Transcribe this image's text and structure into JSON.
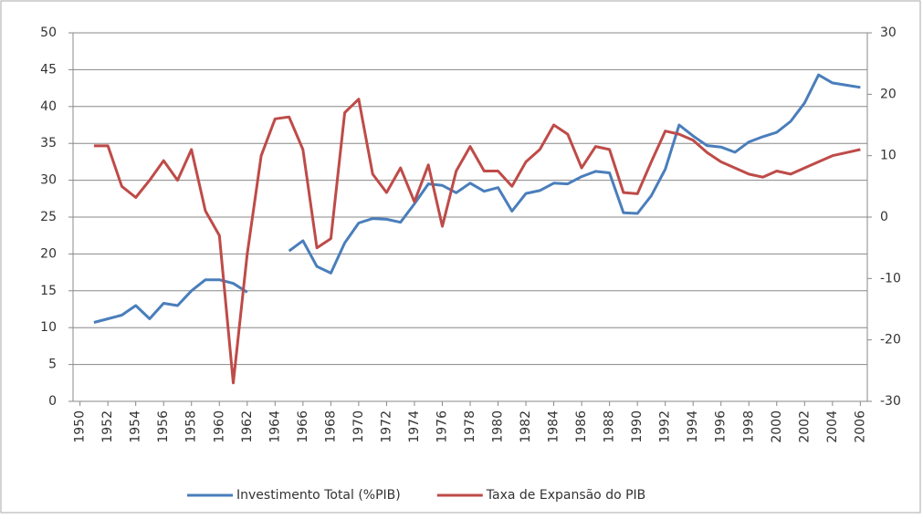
{
  "chart_data": {
    "type": "line",
    "x": [
      1951,
      1952,
      1953,
      1954,
      1955,
      1956,
      1957,
      1958,
      1959,
      1960,
      1961,
      1962,
      1963,
      1964,
      1965,
      1966,
      1967,
      1968,
      1969,
      1970,
      1971,
      1972,
      1973,
      1974,
      1975,
      1976,
      1977,
      1978,
      1979,
      1980,
      1981,
      1982,
      1983,
      1984,
      1985,
      1986,
      1987,
      1988,
      1989,
      1990,
      1991,
      1992,
      1993,
      1994,
      1995,
      1996,
      1997,
      1998,
      1999,
      2000,
      2001,
      2002,
      2003,
      2004,
      2005,
      2006
    ],
    "series": [
      {
        "name": "Investimento Total (%PIB)",
        "color": "#4a7ebb",
        "axis": "y",
        "values": [
          10.7,
          11.2,
          11.7,
          13.0,
          11.2,
          13.3,
          13.0,
          15.0,
          16.5,
          16.5,
          16.0,
          14.8,
          null,
          null,
          20.4,
          21.8,
          18.3,
          17.4,
          21.5,
          24.2,
          24.8,
          24.7,
          24.3,
          26.8,
          29.5,
          29.3,
          28.3,
          29.6,
          28.5,
          29.0,
          25.8,
          28.2,
          28.6,
          29.6,
          29.5,
          30.5,
          31.2,
          31.0,
          25.6,
          25.5,
          27.9,
          31.5,
          37.5,
          36.0,
          34.7,
          34.5,
          33.8,
          35.2,
          35.9,
          36.5,
          38.0,
          40.5,
          44.3,
          43.2,
          42.9,
          42.6
        ]
      },
      {
        "name": "Taxa de Expansão do PIB",
        "color": "#be4b48",
        "axis": "y2",
        "values": [
          11.6,
          11.6,
          5.0,
          3.2,
          6.0,
          9.2,
          6.0,
          11.0,
          1.0,
          -3.0,
          -27.0,
          -6.0,
          10.0,
          16.0,
          16.3,
          11.0,
          -5.0,
          -3.5,
          17.0,
          19.2,
          7.0,
          4.0,
          8.0,
          2.5,
          8.5,
          -1.5,
          7.5,
          11.5,
          7.5,
          7.5,
          5.0,
          9.0,
          11.0,
          15.0,
          13.5,
          8.0,
          11.5,
          11.0,
          4.0,
          3.8,
          9.0,
          14.0,
          13.5,
          12.5,
          10.5,
          9.0,
          8.0,
          7.0,
          6.5,
          7.5,
          7.0,
          8.0,
          9.0,
          10.0,
          10.5,
          11.0
        ]
      }
    ],
    "xlim": [
      1949.5,
      2006.5
    ],
    "xticks": [
      1950,
      1952,
      1954,
      1956,
      1958,
      1960,
      1962,
      1964,
      1966,
      1968,
      1970,
      1972,
      1974,
      1976,
      1978,
      1980,
      1982,
      1984,
      1986,
      1988,
      1990,
      1992,
      1994,
      1996,
      1998,
      2000,
      2002,
      2004,
      2006
    ],
    "ylim": [
      0,
      50
    ],
    "yticks": [
      0,
      5,
      10,
      15,
      20,
      25,
      30,
      35,
      40,
      45,
      50
    ],
    "y2lim": [
      -30,
      30
    ],
    "y2ticks": [
      -30,
      -20,
      -10,
      0,
      10,
      20,
      30
    ],
    "grid": true,
    "legend": "bottom"
  }
}
